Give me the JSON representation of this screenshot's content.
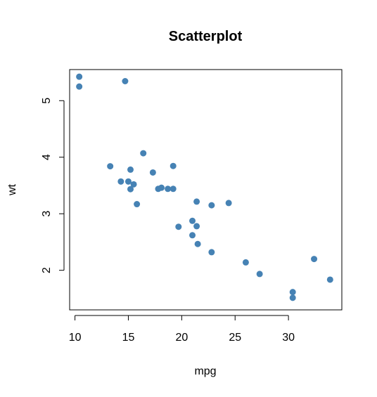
{
  "chart_data": {
    "type": "scatter",
    "title": "Scatterplot",
    "xlabel": "mpg",
    "ylabel": "wt",
    "xlim": [
      9.5,
      35
    ],
    "ylim": [
      1.3,
      5.55
    ],
    "xticks": [
      10,
      15,
      20,
      25,
      30
    ],
    "yticks": [
      2,
      3,
      4,
      5
    ],
    "grid": false,
    "legend": "none",
    "point_color": "#4682B4",
    "series": [
      {
        "x": [
          21.0,
          21.0,
          22.8,
          21.4,
          18.7,
          18.1,
          14.3,
          24.4,
          22.8,
          19.2,
          17.8,
          16.4,
          17.3,
          15.2,
          10.4,
          10.4,
          14.7,
          32.4,
          30.4,
          33.9,
          21.5,
          15.5,
          15.2,
          13.3,
          19.2,
          27.3,
          26.0,
          30.4,
          15.8,
          19.7,
          15.0,
          21.4
        ],
        "y": [
          2.62,
          2.875,
          2.32,
          3.215,
          3.44,
          3.46,
          3.57,
          3.19,
          3.15,
          3.44,
          3.44,
          4.07,
          3.73,
          3.78,
          5.25,
          5.424,
          5.345,
          2.2,
          1.615,
          1.835,
          2.465,
          3.52,
          3.435,
          3.84,
          3.845,
          1.935,
          2.14,
          1.513,
          3.17,
          2.77,
          3.57,
          2.78
        ]
      }
    ]
  }
}
